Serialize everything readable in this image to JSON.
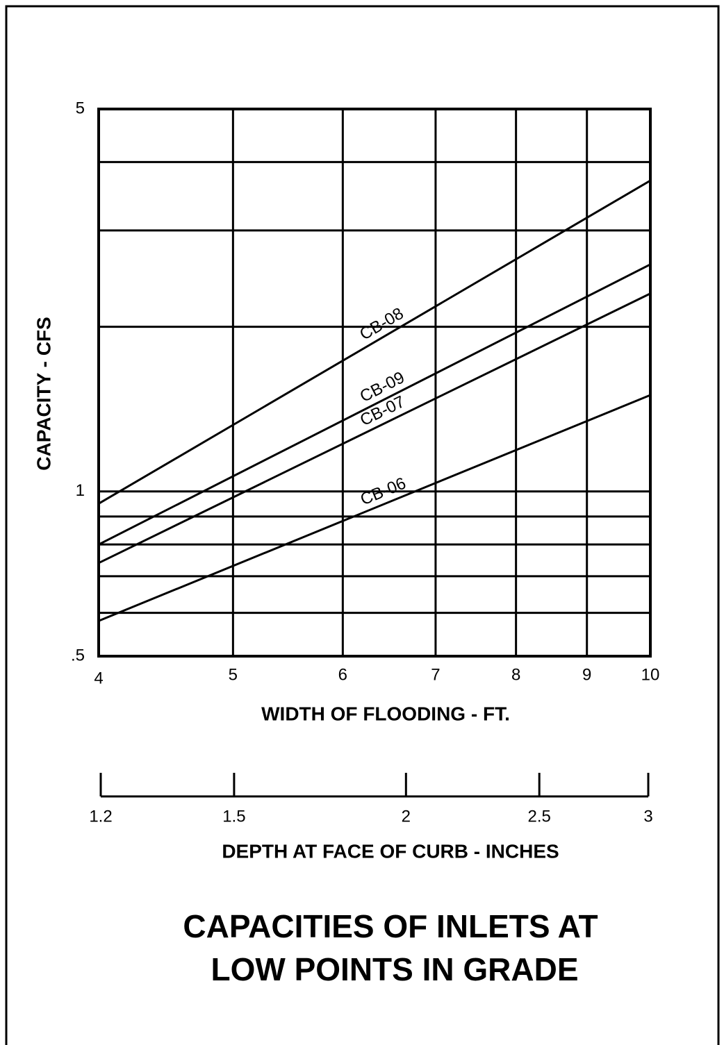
{
  "chart_data": {
    "type": "line",
    "title": [
      "CAPACITIES OF INLETS AT",
      "LOW POINTS IN GRADE"
    ],
    "x_label": "WIDTH OF FLOODING - FT.",
    "y_label": "CAPACITY - CFS",
    "x2_label": "DEPTH AT FACE OF CURB - INCHES",
    "x": [
      4,
      10
    ],
    "series": [
      {
        "name": "CB-08",
        "color": "#000000",
        "values": [
          0.95,
          3.7
        ]
      },
      {
        "name": "CB-09",
        "color": "#000000",
        "values": [
          0.8,
          2.6
        ]
      },
      {
        "name": "CB-07",
        "color": "#000000",
        "values": [
          0.74,
          2.3
        ]
      },
      {
        "name": "CB-06",
        "color": "#000000",
        "values": [
          0.58,
          1.5
        ]
      }
    ],
    "xlim": [
      4,
      10
    ],
    "xticks": [
      4,
      5,
      6,
      7,
      8,
      9,
      10
    ],
    "ylim": [
      0.5,
      5
    ],
    "yticks": [
      {
        "value": 0.5,
        "label": ".5"
      },
      1,
      5
    ],
    "ygrid": [
      0.6,
      0.7,
      0.8,
      0.9,
      2,
      3,
      4
    ],
    "x2lim": [
      1.2,
      3
    ],
    "x2ticks": [
      1.2,
      1.5,
      2,
      2.5,
      3
    ],
    "log_x": true,
    "log_y": true,
    "grid": true
  }
}
